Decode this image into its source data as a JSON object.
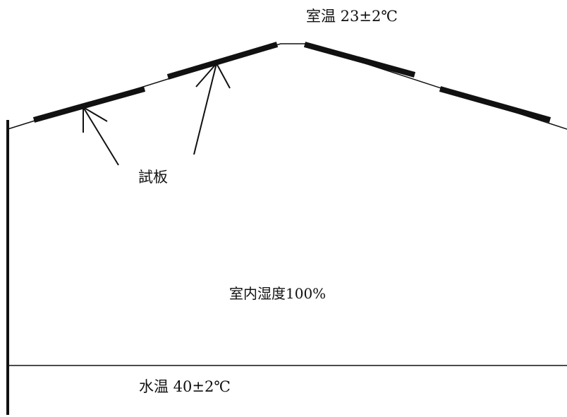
{
  "labels": {
    "room_temperature": "室温 23±2℃",
    "test_panel": "試板",
    "indoor_humidity": "室内湿度100%",
    "water_temperature": "水温 40±2℃"
  },
  "colors": {
    "line": "#111111",
    "background": "#ffffff"
  }
}
